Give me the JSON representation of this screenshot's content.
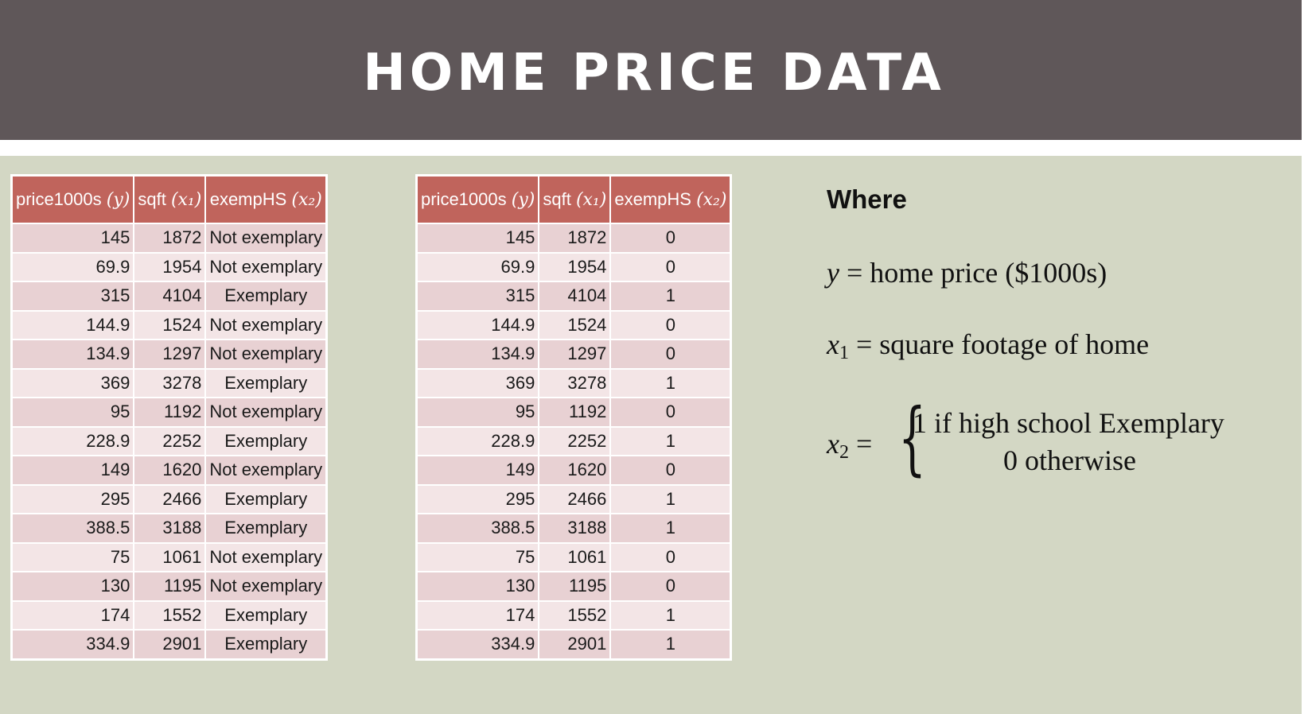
{
  "title": "HOME PRICE DATA",
  "table_left": {
    "headers": [
      {
        "text": "price1000s ",
        "math": "(y)"
      },
      {
        "text": "sqft ",
        "math": "(x₁)"
      },
      {
        "text": "exempHS ",
        "math": "(x₂)"
      }
    ],
    "rows": [
      [
        "145",
        "1872",
        "Not exemplary"
      ],
      [
        "69.9",
        "1954",
        "Not exemplary"
      ],
      [
        "315",
        "4104",
        "Exemplary"
      ],
      [
        "144.9",
        "1524",
        "Not exemplary"
      ],
      [
        "134.9",
        "1297",
        "Not exemplary"
      ],
      [
        "369",
        "3278",
        "Exemplary"
      ],
      [
        "95",
        "1192",
        "Not exemplary"
      ],
      [
        "228.9",
        "2252",
        "Exemplary"
      ],
      [
        "149",
        "1620",
        "Not exemplary"
      ],
      [
        "295",
        "2466",
        "Exemplary"
      ],
      [
        "388.5",
        "3188",
        "Exemplary"
      ],
      [
        "75",
        "1061",
        "Not exemplary"
      ],
      [
        "130",
        "1195",
        "Not exemplary"
      ],
      [
        "174",
        "1552",
        "Exemplary"
      ],
      [
        "334.9",
        "2901",
        "Exemplary"
      ]
    ]
  },
  "table_right": {
    "headers": [
      {
        "text": "price1000s ",
        "math": "(y)"
      },
      {
        "text": "sqft ",
        "math": "(x₁)"
      },
      {
        "text": "exempHS ",
        "math": "(x₂)"
      }
    ],
    "rows": [
      [
        "145",
        "1872",
        "0"
      ],
      [
        "69.9",
        "1954",
        "0"
      ],
      [
        "315",
        "4104",
        "1"
      ],
      [
        "144.9",
        "1524",
        "0"
      ],
      [
        "134.9",
        "1297",
        "0"
      ],
      [
        "369",
        "3278",
        "1"
      ],
      [
        "95",
        "1192",
        "0"
      ],
      [
        "228.9",
        "2252",
        "1"
      ],
      [
        "149",
        "1620",
        "0"
      ],
      [
        "295",
        "2466",
        "1"
      ],
      [
        "388.5",
        "3188",
        "1"
      ],
      [
        "75",
        "1061",
        "0"
      ],
      [
        "130",
        "1195",
        "0"
      ],
      [
        "174",
        "1552",
        "1"
      ],
      [
        "334.9",
        "2901",
        "1"
      ]
    ]
  },
  "where_label": "Where",
  "definitions": {
    "y": {
      "var": "y",
      "rhs": " = home price ($1000s)"
    },
    "x1": {
      "var": "x",
      "sub": "1",
      "rhs": " = square footage of home"
    },
    "x2": {
      "var": "x",
      "sub": "2",
      "eq": " =",
      "case1": "1 if high school Exemplary",
      "case2": "0 otherwise"
    }
  }
}
